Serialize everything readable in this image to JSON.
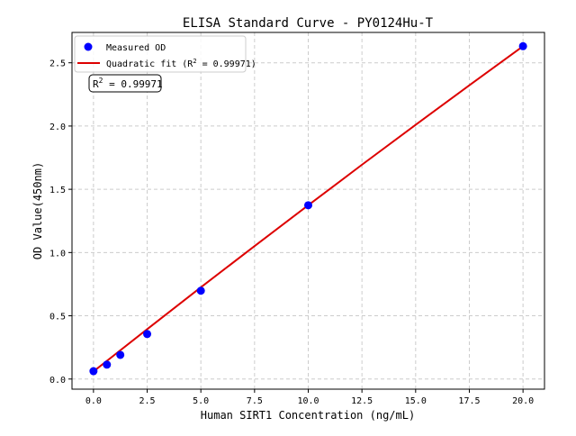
{
  "chart_data": {
    "type": "scatter",
    "title": "ELISA Standard Curve - PY0124Hu-T",
    "xlabel": "Human SIRT1 Concentration (ng/mL)",
    "ylabel": "OD Value(450nm)",
    "xlim": [
      -1,
      21
    ],
    "ylim": [
      -0.08,
      2.74
    ],
    "xticks": [
      0,
      2.5,
      5,
      7.5,
      10,
      12.5,
      15,
      17.5,
      20
    ],
    "xtick_labels": [
      "0.0",
      "2.5",
      "5.0",
      "7.5",
      "10.0",
      "12.5",
      "15.0",
      "17.5",
      "20.0"
    ],
    "yticks": [
      0,
      0.5,
      1,
      1.5,
      2,
      2.5
    ],
    "ytick_labels": [
      "0.0",
      "0.5",
      "1.0",
      "1.5",
      "2.0",
      "2.5"
    ],
    "grid": true,
    "legend_position": "top-left",
    "series": [
      {
        "name": "Measured OD",
        "kind": "scatter",
        "color": "#0000ff",
        "x": [
          0,
          0.625,
          1.25,
          2.5,
          5,
          10,
          20
        ],
        "y": [
          0.062,
          0.114,
          0.191,
          0.356,
          0.698,
          1.374,
          2.631
        ]
      },
      {
        "name": "Quadratic fit (R² = 0.99971)",
        "kind": "line",
        "color": "#dd0000",
        "x": [
          0,
          2.5,
          5,
          7.5,
          10,
          12.5,
          15,
          17.5,
          20
        ],
        "y": [
          0.06,
          0.394,
          0.725,
          1.051,
          1.374,
          1.694,
          2.01,
          2.322,
          2.631
        ]
      }
    ],
    "legend": {
      "scatter_label": "Measured OD",
      "fit_label_prefix": "Quadratic fit (R",
      "fit_label_suffix": " = 0.99971)"
    },
    "annotation": {
      "prefix": "R",
      "sup": "2",
      "suffix": " = 0.99971"
    }
  }
}
